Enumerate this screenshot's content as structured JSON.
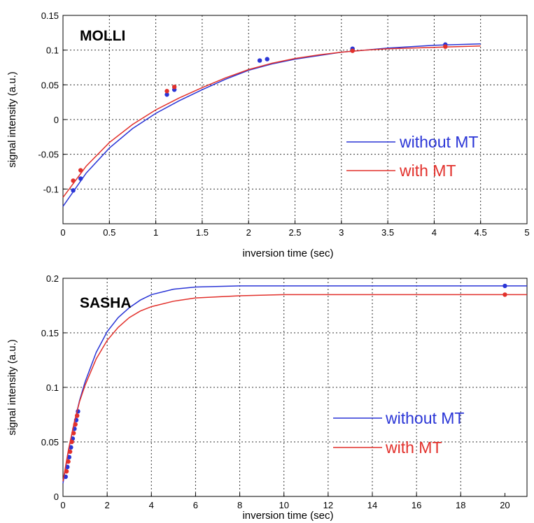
{
  "colors": {
    "without_mt": "#2a35d6",
    "with_mt": "#e2302b"
  },
  "chart_data": [
    {
      "type": "line",
      "title": "MOLLI",
      "xlabel": "inversion time (sec)",
      "ylabel": "signal intensity (a.u.)",
      "xlim": [
        0,
        5
      ],
      "ylim": [
        -0.15,
        0.15
      ],
      "xticks": [
        0,
        0.5,
        1,
        1.5,
        2,
        2.5,
        3,
        3.5,
        4,
        4.5,
        5
      ],
      "xtick_labels": [
        "0",
        "0.5",
        "1",
        "1.5",
        "2",
        "2.5",
        "3",
        "3.5",
        "4",
        "4.5",
        "5"
      ],
      "yticks": [
        -0.1,
        -0.05,
        0,
        0.05,
        0.1,
        0.15
      ],
      "ytick_labels": [
        "-0.1",
        "-0.05",
        "0",
        "0.05",
        "0.1",
        "0.15"
      ],
      "grid": true,
      "legend_position": "right",
      "series": [
        {
          "name": "without MT",
          "color": "#2a35d6",
          "curve_x": [
            0,
            0.25,
            0.5,
            0.75,
            1,
            1.25,
            1.5,
            1.75,
            2,
            2.25,
            2.5,
            2.75,
            3,
            3.25,
            3.5,
            3.75,
            4,
            4.25,
            4.5
          ],
          "curve_y": [
            -0.125,
            -0.077,
            -0.041,
            -0.013,
            0.009,
            0.027,
            0.043,
            0.058,
            0.071,
            0.08,
            0.087,
            0.092,
            0.097,
            0.1,
            0.103,
            0.105,
            0.107,
            0.108,
            0.109
          ],
          "points_x": [
            0.11,
            0.19,
            1.12,
            1.2,
            2.12,
            2.2,
            3.12,
            4.12
          ],
          "points_y": [
            -0.102,
            -0.085,
            0.036,
            0.043,
            0.085,
            0.087,
            0.102,
            0.108
          ]
        },
        {
          "name": "with MT",
          "color": "#e2302b",
          "curve_x": [
            0,
            0.25,
            0.5,
            0.75,
            1,
            1.25,
            1.5,
            1.75,
            2,
            2.25,
            2.5,
            2.75,
            3,
            3.25,
            3.5,
            3.75,
            4,
            4.25,
            4.5
          ],
          "curve_y": [
            -0.112,
            -0.067,
            -0.033,
            -0.007,
            0.014,
            0.031,
            0.046,
            0.06,
            0.072,
            0.081,
            0.088,
            0.093,
            0.097,
            0.1,
            0.102,
            0.103,
            0.104,
            0.105,
            0.106
          ],
          "points_x": [
            0.11,
            0.19,
            1.12,
            1.2,
            3.12,
            4.12
          ],
          "points_y": [
            -0.088,
            -0.073,
            0.041,
            0.047,
            0.099,
            0.105
          ]
        }
      ]
    },
    {
      "type": "line",
      "title": "SASHA",
      "xlabel": "inversion time (sec)",
      "ylabel": "signal intensity (a.u.)",
      "xlim": [
        0,
        21
      ],
      "ylim": [
        0,
        0.2
      ],
      "xticks": [
        0,
        2,
        4,
        6,
        8,
        10,
        12,
        14,
        16,
        18,
        20
      ],
      "xtick_labels": [
        "0",
        "2",
        "4",
        "6",
        "8",
        "10",
        "12",
        "14",
        "16",
        "18",
        "20"
      ],
      "yticks": [
        0,
        0.05,
        0.1,
        0.15,
        0.2
      ],
      "ytick_labels": [
        "0",
        "0.05",
        "0.1",
        "0.15",
        "0.2"
      ],
      "grid": true,
      "legend_position": "right",
      "series": [
        {
          "name": "without MT",
          "color": "#2a35d6",
          "curve_x": [
            0,
            0.25,
            0.5,
            0.75,
            1,
            1.5,
            2,
            2.5,
            3,
            3.5,
            4,
            5,
            6,
            8,
            10,
            14,
            21
          ],
          "curve_y": [
            0.012,
            0.042,
            0.067,
            0.088,
            0.105,
            0.132,
            0.151,
            0.164,
            0.173,
            0.18,
            0.185,
            0.19,
            0.192,
            0.193,
            0.193,
            0.193,
            0.193
          ],
          "points_x": [
            0.12,
            0.2,
            0.28,
            0.36,
            0.44,
            0.52,
            0.6,
            0.68,
            20
          ],
          "points_y": [
            0.018,
            0.027,
            0.036,
            0.045,
            0.053,
            0.062,
            0.07,
            0.078,
            0.193
          ]
        },
        {
          "name": "with MT",
          "color": "#e2302b",
          "curve_x": [
            0,
            0.25,
            0.5,
            0.75,
            1,
            1.5,
            2,
            2.5,
            3,
            3.5,
            4,
            5,
            6,
            8,
            10,
            14,
            21
          ],
          "curve_y": [
            0.014,
            0.043,
            0.067,
            0.087,
            0.102,
            0.126,
            0.143,
            0.155,
            0.164,
            0.17,
            0.174,
            0.179,
            0.182,
            0.184,
            0.185,
            0.185,
            0.185
          ],
          "points_x": [
            0.16,
            0.24,
            0.32,
            0.4,
            0.48,
            0.56,
            0.64,
            20
          ],
          "points_y": [
            0.023,
            0.032,
            0.041,
            0.05,
            0.058,
            0.066,
            0.074,
            0.185
          ]
        }
      ]
    }
  ]
}
